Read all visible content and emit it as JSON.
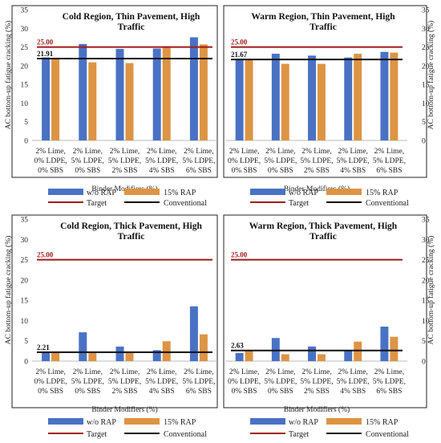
{
  "colors": {
    "wo_rap": "#4a72c4",
    "rap15": "#dd9444",
    "target": "#9e1b1b",
    "conventional": "#111111"
  },
  "legend": {
    "wo_rap": "w/o RAP",
    "rap15": "15% RAP",
    "target": "Target",
    "conventional": "Conventional"
  },
  "chart_data": [
    {
      "type": "bar",
      "title_lines": [
        "Cold Region, Thin Pavement, High",
        "Traffic"
      ],
      "categories": [
        [
          "2% Lime,",
          "0% LDPE,",
          "0% SBS"
        ],
        [
          "2% Lime,",
          "5% LDPE,",
          "0% SBS"
        ],
        [
          "2% Lime,",
          "5% LDPE,",
          "2% SBS"
        ],
        [
          "2% Lime,",
          "5% LDPE,",
          "4% SBS"
        ],
        [
          "2% Lime,",
          "5% LDPE,",
          "6% SBS"
        ]
      ],
      "series": [
        {
          "name": "w/o RAP",
          "values": [
            22.2,
            25.8,
            24.5,
            24.6,
            27.6
          ]
        },
        {
          "name": "15% RAP",
          "values": [
            22.0,
            20.9,
            20.7,
            25.2,
            25.7
          ]
        }
      ],
      "target": 25.0,
      "conventional": 21.91,
      "target_label": "25.00",
      "conventional_label": "21.91",
      "xlabel": "Binder Modifiers (%)",
      "ylabel": "AC bottom-up fatigue cracking (%)",
      "ylim": [
        0,
        35
      ],
      "yticks": [
        "0",
        "5",
        "10",
        "15",
        "20",
        "25",
        "30",
        "35"
      ],
      "yaxis_side": "left"
    },
    {
      "type": "bar",
      "title_lines": [
        "Warm Region, Thin Pavement, High",
        "Traffic"
      ],
      "categories": [
        [
          "2% Lime,",
          "0% LDPE,",
          "0% SBS"
        ],
        [
          "2% Lime,",
          "5% LDPE,",
          "0% SBS"
        ],
        [
          "2% Lime,",
          "5% LDPE,",
          "2% SBS"
        ],
        [
          "2% Lime,",
          "5% LDPE,",
          "4% SBS"
        ],
        [
          "2% Lime,",
          "5% LDPE,",
          "6% SBS"
        ]
      ],
      "series": [
        {
          "name": "w/o RAP",
          "values": [
            21.5,
            23.2,
            22.7,
            22.2,
            23.7
          ]
        },
        {
          "name": "15% RAP",
          "values": [
            21.6,
            20.5,
            20.5,
            23.2,
            23.5
          ]
        }
      ],
      "target": 25.0,
      "conventional": 21.67,
      "target_label": "25.00",
      "conventional_label": "21.67",
      "xlabel": "Binder Modifiers (%)",
      "ylabel": "AC bottom-up fatigue cracking (%)",
      "ylim": [
        0,
        35
      ],
      "yticks": [
        "0",
        "5",
        "10",
        "15",
        "20",
        "25",
        "30",
        "35"
      ],
      "yaxis_side": "right"
    },
    {
      "type": "bar",
      "title_lines": [
        "Cold Region, Thick Pavement, High",
        "Traffic"
      ],
      "categories": [
        [
          "2% Lime,",
          "0% LDPE,",
          "0% SBS"
        ],
        [
          "2% Lime,",
          "5% LDPE,",
          "0% SBS"
        ],
        [
          "2% Lime,",
          "5% LDPE,",
          "2% SBS"
        ],
        [
          "2% Lime,",
          "5% LDPE,",
          "4% SBS"
        ],
        [
          "2% Lime,",
          "5% LDPE,",
          "6% SBS"
        ]
      ],
      "series": [
        {
          "name": "w/o RAP",
          "values": [
            2.2,
            7.1,
            3.6,
            2.7,
            13.5
          ]
        },
        {
          "name": "15% RAP",
          "values": [
            2.3,
            2.0,
            2.0,
            4.9,
            6.6
          ]
        }
      ],
      "target": 25.0,
      "conventional": 2.21,
      "target_label": "25.00",
      "conventional_label": "2.21",
      "xlabel": "Binder Modifiers (%)",
      "ylabel": "AC bottom-up fatigue cracking (%)",
      "ylim": [
        0,
        35
      ],
      "yticks": [
        "0",
        "5",
        "10",
        "15",
        "20",
        "25",
        "30",
        "35"
      ],
      "yaxis_side": "left"
    },
    {
      "type": "bar",
      "title_lines": [
        "Warm Region, Thick Pavement, High",
        "Traffic"
      ],
      "categories": [
        [
          "2% Lime,",
          "0% LDPE,",
          "0% SBS"
        ],
        [
          "2% Lime,",
          "5% LDPE,",
          "0% SBS"
        ],
        [
          "2% Lime,",
          "5% LDPE,",
          "2% SBS"
        ],
        [
          "2% Lime,",
          "5% LDPE,",
          "4% SBS"
        ],
        [
          "2% Lime,",
          "5% LDPE,",
          "6% SBS"
        ]
      ],
      "series": [
        {
          "name": "w/o RAP",
          "values": [
            2.0,
            5.7,
            3.6,
            2.6,
            8.5
          ]
        },
        {
          "name": "15% RAP",
          "values": [
            2.6,
            1.7,
            1.7,
            4.8,
            6.0
          ]
        }
      ],
      "target": 25.0,
      "conventional": 2.63,
      "target_label": "25.00",
      "conventional_label": "2.63",
      "xlabel": "Binder Modifiers (%)",
      "ylabel": "AC bottom-up fatigue cracking (%)",
      "ylim": [
        0,
        35
      ],
      "yticks": [
        "0",
        "5",
        "10",
        "15",
        "20",
        "25",
        "30",
        "35"
      ],
      "yaxis_side": "right"
    }
  ]
}
